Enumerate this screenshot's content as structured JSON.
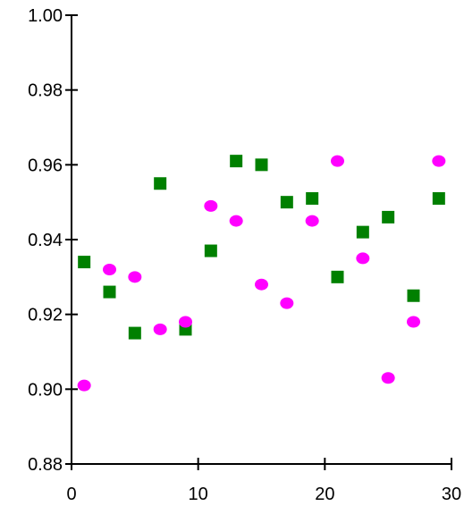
{
  "chart_data": {
    "type": "scatter",
    "title": "",
    "xlabel": "",
    "ylabel": "",
    "xlim": [
      0,
      30
    ],
    "ylim": [
      0.88,
      1.0
    ],
    "x_ticks": [
      0,
      10,
      20,
      30
    ],
    "y_ticks": [
      0.88,
      0.9,
      0.92,
      0.94,
      0.96,
      0.98,
      1.0
    ],
    "x_tick_labels": [
      "0",
      "10",
      "20",
      "30"
    ],
    "y_tick_labels": [
      "0.88",
      "0.90",
      "0.92",
      "0.94",
      "0.96",
      "0.98",
      "1.00"
    ],
    "grid": false,
    "legend": "none",
    "series": [
      {
        "marker": "square",
        "color": "#008000",
        "x": [
          1,
          3,
          5,
          7,
          9,
          11,
          13,
          15,
          17,
          19,
          21,
          23,
          25,
          27,
          29
        ],
        "y": [
          0.934,
          0.926,
          0.915,
          0.955,
          0.916,
          0.937,
          0.961,
          0.96,
          0.95,
          0.951,
          0.93,
          0.942,
          0.946,
          0.925,
          0.951
        ]
      },
      {
        "marker": "circle",
        "color": "#ff00ff",
        "x": [
          1,
          3,
          5,
          7,
          9,
          11,
          13,
          15,
          17,
          19,
          21,
          23,
          25,
          27,
          29
        ],
        "y": [
          0.901,
          0.932,
          0.93,
          0.916,
          0.918,
          0.949,
          0.945,
          0.928,
          0.923,
          0.945,
          0.961,
          0.935,
          0.903,
          0.918,
          0.961
        ]
      }
    ]
  }
}
